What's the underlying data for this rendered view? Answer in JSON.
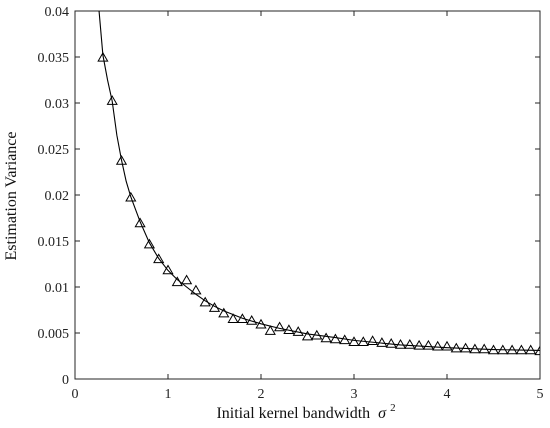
{
  "chart_data": {
    "type": "line",
    "xlabel": "Initial kernel bandwidth",
    "xlabel_symbol": "σ",
    "xlabel_superscript": "2",
    "ylabel": "Estimation Variance",
    "xlim": [
      0,
      5
    ],
    "ylim": [
      0,
      0.04
    ],
    "x_ticks": [
      "0",
      "1",
      "2",
      "3",
      "4",
      "5"
    ],
    "y_ticks": [
      "0",
      "0.005",
      "0.01",
      "0.015",
      "0.02",
      "0.025",
      "0.03",
      "0.035",
      "0.04"
    ],
    "grid": false,
    "legend": "none",
    "line_color": "#000000",
    "marker": "triangle-open",
    "curve": {
      "x": [
        0.25,
        0.3,
        0.35,
        0.4,
        0.45,
        0.5,
        0.55,
        0.6,
        0.7,
        0.8,
        0.9,
        1.0,
        1.1,
        1.2,
        1.3,
        1.4,
        1.5,
        1.6,
        1.8,
        2.0,
        2.2,
        2.5,
        2.8,
        3.0,
        3.5,
        4.0,
        4.5,
        5.0
      ],
      "y": [
        0.041,
        0.0352,
        0.0325,
        0.0302,
        0.0265,
        0.0238,
        0.0215,
        0.0198,
        0.0171,
        0.0148,
        0.0131,
        0.0118,
        0.0108,
        0.01,
        0.0092,
        0.0085,
        0.0079,
        0.0074,
        0.0066,
        0.006,
        0.0055,
        0.0049,
        0.0045,
        0.0042,
        0.0037,
        0.0034,
        0.0032,
        0.0031
      ]
    },
    "series": [
      {
        "x": [
          0.3,
          0.4,
          0.5,
          0.6,
          0.7,
          0.8,
          0.9,
          1.0,
          1.1,
          1.2,
          1.3,
          1.4,
          1.5,
          1.6,
          1.7,
          1.8,
          1.9,
          2.0,
          2.1,
          2.2,
          2.3,
          2.4,
          2.5,
          2.6,
          2.7,
          2.8,
          2.9,
          3.0,
          3.1,
          3.2,
          3.3,
          3.4,
          3.5,
          3.6,
          3.7,
          3.8,
          3.9,
          4.0,
          4.1,
          4.2,
          4.3,
          4.4,
          4.5,
          4.6,
          4.7,
          4.8,
          4.9,
          5.0
        ],
        "y": [
          0.0349,
          0.0302,
          0.0237,
          0.0197,
          0.0169,
          0.0146,
          0.013,
          0.0118,
          0.0105,
          0.0107,
          0.0096,
          0.0083,
          0.0077,
          0.0071,
          0.0065,
          0.0065,
          0.0063,
          0.0059,
          0.0052,
          0.0056,
          0.0053,
          0.0051,
          0.0046,
          0.0047,
          0.0044,
          0.0043,
          0.0042,
          0.004,
          0.004,
          0.0041,
          0.0039,
          0.0038,
          0.0037,
          0.0037,
          0.0036,
          0.0036,
          0.0035,
          0.0035,
          0.0033,
          0.0033,
          0.0032,
          0.0032,
          0.0031,
          0.0031,
          0.0031,
          0.0031,
          0.0031,
          0.003
        ]
      }
    ]
  }
}
